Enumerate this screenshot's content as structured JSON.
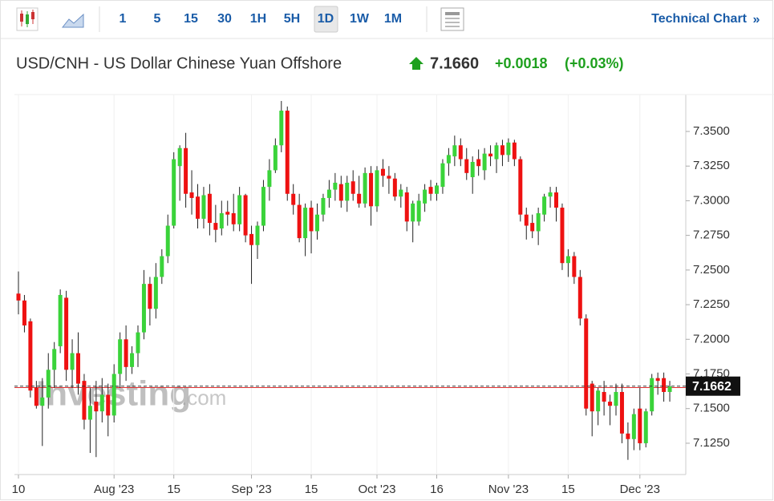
{
  "toolbar": {
    "intervals": [
      "1",
      "5",
      "15",
      "30",
      "1H",
      "5H",
      "1D",
      "1W",
      "1M"
    ],
    "active": "1D",
    "technical_chart": "Technical Chart",
    "more": "»"
  },
  "header": {
    "symbol": "USD/CNH - US Dollar Chinese Yuan Offshore",
    "price": "7.1660",
    "change": "+0.0018",
    "change_pct": "(+0.03%)"
  },
  "chart_data": {
    "type": "candlestick",
    "watermark": {
      "brand": "Investing",
      "suffix": ".com"
    },
    "up_color": "#3ad33a",
    "down_color": "#ee1111",
    "categories": [
      "10",
      null,
      null,
      null,
      null,
      null,
      null,
      null,
      null,
      null,
      null,
      null,
      null,
      null,
      null,
      null,
      "Aug '23",
      null,
      null,
      null,
      null,
      null,
      null,
      null,
      null,
      null,
      "15",
      null,
      null,
      null,
      null,
      null,
      null,
      null,
      null,
      null,
      null,
      null,
      null,
      "Sep '23",
      null,
      null,
      null,
      null,
      null,
      null,
      null,
      null,
      null,
      "15",
      null,
      null,
      null,
      null,
      null,
      null,
      null,
      null,
      null,
      null,
      "Oct '23",
      null,
      null,
      null,
      null,
      null,
      null,
      null,
      null,
      null,
      "16",
      null,
      null,
      null,
      null,
      null,
      null,
      null,
      null,
      null,
      null,
      null,
      "Nov '23",
      null,
      null,
      null,
      null,
      null,
      null,
      null,
      null,
      null,
      "15",
      null,
      null,
      null,
      null,
      null,
      null,
      null,
      null,
      null,
      null,
      null,
      "Dec '23",
      null,
      null,
      null,
      null,
      null
    ],
    "open": [
      7.233,
      7.228,
      7.213,
      7.165,
      7.152,
      7.158,
      7.178,
      7.195,
      7.23,
      7.178,
      7.19,
      7.17,
      7.142,
      7.155,
      7.148,
      7.16,
      7.145,
      7.175,
      7.2,
      7.18,
      7.19,
      7.205,
      7.24,
      7.222,
      7.245,
      7.26,
      7.282,
      7.325,
      7.338,
      7.306,
      7.303,
      7.287,
      7.305,
      7.284,
      7.28,
      7.292,
      7.291,
      7.283,
      7.304,
      7.276,
      7.268,
      7.282,
      7.31,
      7.322,
      7.34,
      7.365,
      7.305,
      7.297,
      7.273,
      7.295,
      7.278,
      7.29,
      7.302,
      7.308,
      7.312,
      7.3,
      7.314,
      7.305,
      7.298,
      7.32,
      7.296,
      7.323,
      7.318,
      7.316,
      7.303,
      7.306,
      7.285,
      7.285,
      7.298,
      7.31,
      7.305,
      7.31,
      7.327,
      7.332,
      7.34,
      7.33,
      7.317,
      7.33,
      7.322,
      7.334,
      7.33,
      7.34,
      7.333,
      7.342,
      7.33,
      7.29,
      7.284,
      7.278,
      7.29,
      7.303,
      7.306,
      7.295,
      7.255,
      7.26,
      7.245,
      7.215,
      7.168,
      7.148,
      7.162,
      7.155,
      7.152,
      7.162,
      7.132,
      7.128,
      7.15,
      7.125,
      7.148,
      7.172,
      7.172,
      7.162
    ],
    "high": [
      7.249,
      7.232,
      7.215,
      7.17,
      7.172,
      7.19,
      7.198,
      7.236,
      7.235,
      7.2,
      7.205,
      7.175,
      7.165,
      7.17,
      7.172,
      7.168,
      7.182,
      7.205,
      7.21,
      7.195,
      7.21,
      7.25,
      7.245,
      7.255,
      7.265,
      7.29,
      7.335,
      7.34,
      7.349,
      7.322,
      7.312,
      7.31,
      7.312,
      7.297,
      7.3,
      7.3,
      7.305,
      7.31,
      7.305,
      7.282,
      7.285,
      7.315,
      7.33,
      7.345,
      7.372,
      7.368,
      7.312,
      7.305,
      7.298,
      7.3,
      7.298,
      7.305,
      7.315,
      7.32,
      7.318,
      7.318,
      7.322,
      7.318,
      7.324,
      7.325,
      7.325,
      7.33,
      7.325,
      7.32,
      7.312,
      7.31,
      7.3,
      7.305,
      7.312,
      7.315,
      7.313,
      7.33,
      7.338,
      7.347,
      7.345,
      7.338,
      7.332,
      7.337,
      7.338,
      7.34,
      7.342,
      7.344,
      7.345,
      7.344,
      7.332,
      7.295,
      7.29,
      7.295,
      7.305,
      7.31,
      7.31,
      7.298,
      7.265,
      7.263,
      7.25,
      7.218,
      7.17,
      7.165,
      7.17,
      7.16,
      7.168,
      7.168,
      7.14,
      7.15,
      7.165,
      7.15,
      7.175,
      7.176,
      7.176,
      7.17
    ],
    "low": [
      7.218,
      7.205,
      7.158,
      7.15,
      7.123,
      7.15,
      7.165,
      7.19,
      7.17,
      7.165,
      7.16,
      7.135,
      7.118,
      7.115,
      7.14,
      7.13,
      7.14,
      7.165,
      7.17,
      7.175,
      7.18,
      7.2,
      7.21,
      7.215,
      7.24,
      7.255,
      7.28,
      7.3,
      7.295,
      7.29,
      7.28,
      7.28,
      7.275,
      7.27,
      7.275,
      7.282,
      7.278,
      7.278,
      7.27,
      7.24,
      7.258,
      7.278,
      7.3,
      7.32,
      7.335,
      7.3,
      7.29,
      7.27,
      7.26,
      7.262,
      7.272,
      7.285,
      7.295,
      7.3,
      7.295,
      7.292,
      7.3,
      7.295,
      7.295,
      7.282,
      7.292,
      7.31,
      7.305,
      7.3,
      7.295,
      7.278,
      7.27,
      7.282,
      7.292,
      7.3,
      7.3,
      7.305,
      7.318,
      7.325,
      7.325,
      7.315,
      7.305,
      7.318,
      7.315,
      7.325,
      7.32,
      7.325,
      7.328,
      7.325,
      7.285,
      7.272,
      7.273,
      7.268,
      7.285,
      7.295,
      7.285,
      7.25,
      7.245,
      7.24,
      7.21,
      7.145,
      7.13,
      7.138,
      7.145,
      7.138,
      7.145,
      7.125,
      7.113,
      7.12,
      7.12,
      7.122,
      7.145,
      7.16,
      7.155,
      7.155
    ],
    "close": [
      7.228,
      7.21,
      7.163,
      7.152,
      7.158,
      7.178,
      7.193,
      7.232,
      7.178,
      7.19,
      7.168,
      7.142,
      7.152,
      7.148,
      7.16,
      7.145,
      7.175,
      7.2,
      7.18,
      7.19,
      7.205,
      7.24,
      7.222,
      7.245,
      7.26,
      7.282,
      7.33,
      7.338,
      7.305,
      7.302,
      7.287,
      7.304,
      7.284,
      7.279,
      7.291,
      7.29,
      7.283,
      7.304,
      7.275,
      7.268,
      7.282,
      7.31,
      7.322,
      7.34,
      7.365,
      7.305,
      7.297,
      7.273,
      7.295,
      7.278,
      7.29,
      7.302,
      7.308,
      7.313,
      7.3,
      7.313,
      7.305,
      7.298,
      7.32,
      7.296,
      7.322,
      7.318,
      7.316,
      7.303,
      7.308,
      7.285,
      7.298,
      7.3,
      7.308,
      7.305,
      7.311,
      7.327,
      7.333,
      7.34,
      7.33,
      7.32,
      7.328,
      7.325,
      7.334,
      7.332,
      7.34,
      7.333,
      7.342,
      7.33,
      7.29,
      7.282,
      7.278,
      7.291,
      7.303,
      7.306,
      7.295,
      7.255,
      7.26,
      7.245,
      7.215,
      7.15,
      7.148,
      7.163,
      7.155,
      7.152,
      7.162,
      7.132,
      7.128,
      7.146,
      7.125,
      7.148,
      7.172,
      7.17,
      7.162,
      7.166
    ],
    "ylim": [
      7.1024,
      7.3766
    ],
    "yticks": [
      {
        "value": 7.125,
        "label": "7.1250"
      },
      {
        "value": 7.15,
        "label": "7.1500"
      },
      {
        "value": 7.175,
        "label": "7.1750"
      },
      {
        "value": 7.2,
        "label": "7.2000"
      },
      {
        "value": 7.225,
        "label": "7.2250"
      },
      {
        "value": 7.25,
        "label": "7.2500"
      },
      {
        "value": 7.275,
        "label": "7.2750"
      },
      {
        "value": 7.3,
        "label": "7.3000"
      },
      {
        "value": 7.325,
        "label": "7.3250"
      },
      {
        "value": 7.35,
        "label": "7.3500"
      }
    ],
    "last_price": 7.1662,
    "reference_line": {
      "value": 7.1652,
      "color": "#e03030"
    },
    "grid": true
  }
}
